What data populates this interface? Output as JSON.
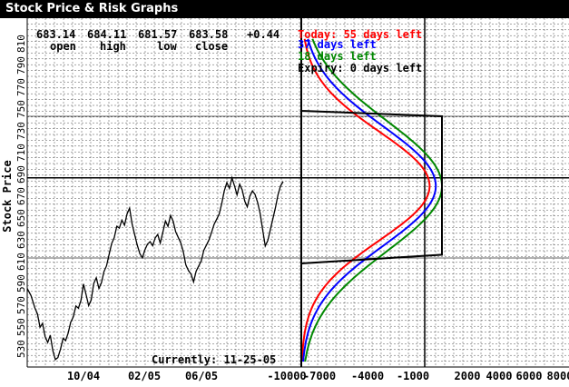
{
  "window": {
    "title": "Stock Price & Risk Graphs"
  },
  "quote": {
    "open_value": "683.14",
    "open_label": "open",
    "high_value": "684.11",
    "high_label": "high",
    "low_value": "681.57",
    "low_label": "low",
    "close_value": "683.58",
    "close_label": "close",
    "change_value": "+0.44"
  },
  "legend": {
    "today": "Today: 55 days left",
    "blue": "37 days left",
    "green": "18 days left",
    "expiry": "Expiry: 0 days left"
  },
  "currently": "Currently: 11-25-05",
  "colors": {
    "today": "#ff0000",
    "blue": "#0000ff",
    "green": "#008800",
    "expiry": "#000000"
  },
  "chart_data": {
    "type": "line",
    "ylabel": "Stock Price",
    "y_ticks": [
      "530",
      "550",
      "570",
      "590",
      "610",
      "630",
      "650",
      "670",
      "690",
      "710",
      "730",
      "750",
      "770",
      "790",
      "810"
    ],
    "x_ticks_time": [
      "10/04",
      "02/05",
      "06/05"
    ],
    "x_ticks_pl": [
      "-10000",
      "-7000",
      "-4000",
      "-1000",
      "2000",
      "4000",
      "6000",
      "8000"
    ],
    "ylim": [
      510,
      830
    ],
    "grid": true,
    "reference_lines": {
      "current_price": 683.58,
      "upper_strike": 740,
      "lower_strike": 610
    },
    "price_series": [
      [
        0,
        582
      ],
      [
        3,
        575
      ],
      [
        6,
        565
      ],
      [
        8,
        560
      ],
      [
        10,
        548
      ],
      [
        12,
        552
      ],
      [
        14,
        540
      ],
      [
        16,
        535
      ],
      [
        18,
        542
      ],
      [
        20,
        528
      ],
      [
        22,
        520
      ],
      [
        24,
        522
      ],
      [
        26,
        530
      ],
      [
        28,
        540
      ],
      [
        30,
        538
      ],
      [
        32,
        545
      ],
      [
        34,
        555
      ],
      [
        36,
        560
      ],
      [
        38,
        570
      ],
      [
        40,
        568
      ],
      [
        42,
        575
      ],
      [
        44,
        590
      ],
      [
        46,
        580
      ],
      [
        48,
        570
      ],
      [
        50,
        575
      ],
      [
        52,
        590
      ],
      [
        54,
        595
      ],
      [
        56,
        585
      ],
      [
        58,
        590
      ],
      [
        60,
        600
      ],
      [
        62,
        605
      ],
      [
        64,
        615
      ],
      [
        66,
        625
      ],
      [
        68,
        630
      ],
      [
        70,
        640
      ],
      [
        72,
        638
      ],
      [
        74,
        645
      ],
      [
        76,
        640
      ],
      [
        78,
        650
      ],
      [
        80,
        655
      ],
      [
        82,
        640
      ],
      [
        84,
        630
      ],
      [
        86,
        620
      ],
      [
        88,
        612
      ],
      [
        90,
        608
      ],
      [
        92,
        615
      ],
      [
        94,
        620
      ],
      [
        96,
        622
      ],
      [
        98,
        618
      ],
      [
        100,
        625
      ],
      [
        102,
        628
      ],
      [
        104,
        620
      ],
      [
        106,
        630
      ],
      [
        108,
        640
      ],
      [
        110,
        635
      ],
      [
        112,
        645
      ],
      [
        114,
        640
      ],
      [
        116,
        630
      ],
      [
        118,
        625
      ],
      [
        120,
        620
      ],
      [
        122,
        612
      ],
      [
        124,
        600
      ],
      [
        126,
        595
      ],
      [
        128,
        592
      ],
      [
        130,
        585
      ],
      [
        132,
        595
      ],
      [
        134,
        600
      ],
      [
        136,
        605
      ],
      [
        138,
        615
      ],
      [
        140,
        620
      ],
      [
        142,
        625
      ],
      [
        144,
        632
      ],
      [
        146,
        640
      ],
      [
        148,
        645
      ],
      [
        150,
        650
      ],
      [
        152,
        660
      ],
      [
        154,
        672
      ],
      [
        156,
        680
      ],
      [
        158,
        675
      ],
      [
        160,
        685
      ],
      [
        162,
        678
      ],
      [
        164,
        670
      ],
      [
        166,
        680
      ],
      [
        168,
        675
      ],
      [
        170,
        665
      ],
      [
        172,
        660
      ],
      [
        174,
        670
      ],
      [
        176,
        675
      ],
      [
        178,
        672
      ],
      [
        180,
        665
      ],
      [
        182,
        655
      ],
      [
        184,
        640
      ],
      [
        186,
        625
      ],
      [
        188,
        630
      ],
      [
        190,
        640
      ],
      [
        192,
        650
      ],
      [
        194,
        660
      ],
      [
        196,
        672
      ],
      [
        198,
        680
      ],
      [
        200,
        683.58
      ]
    ],
    "risk_series": [
      {
        "name": "Today: 55 days left",
        "color": "#ff0000",
        "peak": 400,
        "sigma": 50
      },
      {
        "name": "37 days left",
        "color": "#0000ff",
        "peak": 900,
        "sigma": 55
      },
      {
        "name": "18 days left",
        "color": "#008800",
        "peak": 1400,
        "sigma": 60
      },
      {
        "name": "Expiry: 0 days left",
        "color": "#000000",
        "peak": 1400,
        "shape": "trapezoid",
        "lower_strike": 610,
        "upper_strike": 740,
        "max_loss": -10000
      }
    ]
  }
}
